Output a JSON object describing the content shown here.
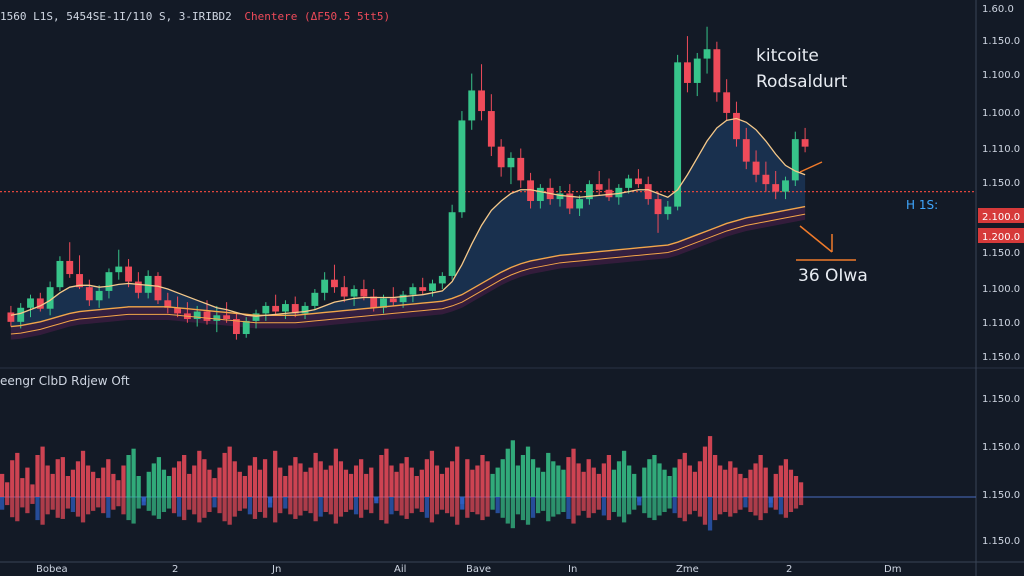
{
  "header": {
    "symbol": "1560 L1S, 5454SE-1I/110 S, 3-IRIBD2",
    "subtitle": "Chentere (ΔF50.5 5tt5)"
  },
  "annotations": {
    "top_label_line1": "kitcoite",
    "top_label_line2": "Rodsaldurt",
    "lower_label": "36 OIwa",
    "hs_label": "H 1S:"
  },
  "indicator": {
    "title": "eengr ClbD Rdjew Oft"
  },
  "colors": {
    "background": "#131a26",
    "up": "#37c48a",
    "down": "#ef4b5a",
    "ma_orange": "#f2a64a",
    "ma_light": "#f6c98a",
    "area_fill": "#1d3b5f",
    "cloud_fill": "#3a1d3f",
    "level_line": "#e0463c",
    "axis": "#8f99ab",
    "indicator_blue": "#2f62c9"
  },
  "chart_data": [
    {
      "type": "candlestick",
      "title": "",
      "y_axis_labels": [
        "1.60.0",
        "1.150.0",
        "1.100.0",
        "1.100.0",
        "1.110.0",
        "1.150.0",
        "2.100.0",
        "1.200.0",
        "1.150.0",
        "1.100.0",
        "1.110.0",
        "1.150.0"
      ],
      "level_tags": [
        "2.100.0",
        "1.200.0"
      ],
      "x_axis_labels": [
        "Bobea",
        "2",
        "Jn",
        "Ail",
        "Bave",
        "In",
        "Zme",
        "2",
        "Dm"
      ],
      "candles": [
        [
          1085,
          1092,
          1070,
          1075
        ],
        [
          1075,
          1095,
          1068,
          1090
        ],
        [
          1090,
          1104,
          1080,
          1100
        ],
        [
          1100,
          1106,
          1086,
          1089
        ],
        [
          1089,
          1118,
          1082,
          1112
        ],
        [
          1112,
          1145,
          1108,
          1140
        ],
        [
          1140,
          1160,
          1122,
          1126
        ],
        [
          1126,
          1146,
          1110,
          1112
        ],
        [
          1112,
          1120,
          1092,
          1098
        ],
        [
          1098,
          1114,
          1090,
          1108
        ],
        [
          1108,
          1132,
          1100,
          1128
        ],
        [
          1128,
          1152,
          1120,
          1134
        ],
        [
          1134,
          1142,
          1112,
          1118
        ],
        [
          1118,
          1128,
          1100,
          1106
        ],
        [
          1106,
          1130,
          1100,
          1124
        ],
        [
          1124,
          1128,
          1094,
          1098
        ],
        [
          1098,
          1106,
          1084,
          1090
        ],
        [
          1090,
          1102,
          1080,
          1084
        ],
        [
          1084,
          1096,
          1074,
          1078
        ],
        [
          1078,
          1092,
          1070,
          1086
        ],
        [
          1086,
          1098,
          1072,
          1076
        ],
        [
          1076,
          1092,
          1064,
          1082
        ],
        [
          1082,
          1096,
          1074,
          1078
        ],
        [
          1078,
          1085,
          1056,
          1062
        ],
        [
          1062,
          1080,
          1058,
          1076
        ],
        [
          1076,
          1088,
          1068,
          1084
        ],
        [
          1084,
          1096,
          1076,
          1092
        ],
        [
          1092,
          1104,
          1082,
          1086
        ],
        [
          1086,
          1098,
          1078,
          1094
        ],
        [
          1094,
          1102,
          1080,
          1084
        ],
        [
          1084,
          1096,
          1078,
          1092
        ],
        [
          1092,
          1110,
          1088,
          1106
        ],
        [
          1106,
          1128,
          1098,
          1120
        ],
        [
          1120,
          1136,
          1106,
          1112
        ],
        [
          1112,
          1124,
          1096,
          1102
        ],
        [
          1102,
          1114,
          1092,
          1110
        ],
        [
          1110,
          1120,
          1098,
          1102
        ],
        [
          1102,
          1110,
          1086,
          1090
        ],
        [
          1090,
          1104,
          1084,
          1100
        ],
        [
          1100,
          1112,
          1092,
          1096
        ],
        [
          1096,
          1108,
          1090,
          1104
        ],
        [
          1104,
          1116,
          1096,
          1112
        ],
        [
          1112,
          1122,
          1104,
          1108
        ],
        [
          1108,
          1120,
          1102,
          1116
        ],
        [
          1116,
          1128,
          1110,
          1124
        ],
        [
          1124,
          1200,
          1120,
          1192
        ],
        [
          1192,
          1300,
          1186,
          1290
        ],
        [
          1290,
          1340,
          1280,
          1322
        ],
        [
          1322,
          1350,
          1290,
          1300
        ],
        [
          1300,
          1318,
          1252,
          1262
        ],
        [
          1262,
          1270,
          1230,
          1240
        ],
        [
          1240,
          1256,
          1222,
          1250
        ],
        [
          1250,
          1260,
          1218,
          1226
        ],
        [
          1226,
          1234,
          1196,
          1204
        ],
        [
          1204,
          1222,
          1196,
          1218
        ],
        [
          1218,
          1228,
          1200,
          1206
        ],
        [
          1206,
          1220,
          1198,
          1212
        ],
        [
          1212,
          1222,
          1190,
          1196
        ],
        [
          1196,
          1210,
          1188,
          1206
        ],
        [
          1206,
          1226,
          1200,
          1222
        ],
        [
          1222,
          1236,
          1210,
          1216
        ],
        [
          1216,
          1228,
          1204,
          1208
        ],
        [
          1208,
          1222,
          1200,
          1218
        ],
        [
          1218,
          1232,
          1212,
          1228
        ],
        [
          1228,
          1238,
          1218,
          1222
        ],
        [
          1222,
          1230,
          1200,
          1206
        ],
        [
          1206,
          1214,
          1170,
          1190
        ],
        [
          1190,
          1204,
          1184,
          1198
        ],
        [
          1198,
          1360,
          1194,
          1352
        ],
        [
          1352,
          1380,
          1320,
          1330
        ],
        [
          1330,
          1362,
          1316,
          1356
        ],
        [
          1356,
          1390,
          1340,
          1366
        ],
        [
          1366,
          1374,
          1310,
          1320
        ],
        [
          1320,
          1334,
          1290,
          1298
        ],
        [
          1298,
          1310,
          1262,
          1270
        ],
        [
          1270,
          1282,
          1238,
          1246
        ],
        [
          1246,
          1258,
          1224,
          1232
        ],
        [
          1232,
          1246,
          1214,
          1222
        ],
        [
          1222,
          1236,
          1206,
          1214
        ],
        [
          1214,
          1230,
          1206,
          1226
        ],
        [
          1226,
          1278,
          1220,
          1270
        ],
        [
          1270,
          1282,
          1256,
          1262
        ]
      ],
      "ma_short": [
        1082,
        1084,
        1088,
        1092,
        1098,
        1106,
        1112,
        1114,
        1114,
        1112,
        1113,
        1115,
        1116,
        1115,
        1114,
        1113,
        1110,
        1106,
        1102,
        1098,
        1094,
        1090,
        1088,
        1085,
        1082,
        1081,
        1082,
        1083,
        1084,
        1085,
        1086,
        1088,
        1092,
        1096,
        1098,
        1100,
        1101,
        1101,
        1101,
        1101,
        1102,
        1103,
        1104,
        1106,
        1108,
        1118,
        1136,
        1158,
        1178,
        1194,
        1204,
        1212,
        1216,
        1216,
        1214,
        1212,
        1210,
        1209,
        1208,
        1209,
        1210,
        1211,
        1212,
        1214,
        1216,
        1216,
        1212,
        1208,
        1216,
        1232,
        1250,
        1268,
        1282,
        1290,
        1292,
        1288,
        1280,
        1268,
        1254,
        1242,
        1236,
        1232
      ],
      "ma_long": [
        1070,
        1071,
        1073,
        1075,
        1078,
        1081,
        1084,
        1086,
        1087,
        1088,
        1089,
        1090,
        1091,
        1091,
        1091,
        1091,
        1091,
        1090,
        1089,
        1088,
        1087,
        1086,
        1085,
        1084,
        1083,
        1082,
        1082,
        1082,
        1082,
        1082,
        1083,
        1084,
        1085,
        1086,
        1087,
        1088,
        1089,
        1090,
        1091,
        1092,
        1093,
        1094,
        1095,
        1096,
        1097,
        1100,
        1104,
        1110,
        1116,
        1122,
        1128,
        1133,
        1137,
        1140,
        1142,
        1144,
        1146,
        1147,
        1148,
        1149,
        1150,
        1151,
        1152,
        1153,
        1154,
        1155,
        1156,
        1157,
        1160,
        1164,
        1168,
        1172,
        1176,
        1180,
        1183,
        1186,
        1188,
        1190,
        1192,
        1194,
        1196,
        1198
      ],
      "ylim": [
        1030,
        1410
      ],
      "level": 1214
    },
    {
      "type": "bar",
      "title": "eengr ClbD Rdjew Oft",
      "y_axis_labels": [
        "1.150.0",
        "1.150.0",
        "1.150.0",
        "1.150.0"
      ],
      "values": [
        22,
        14,
        35,
        42,
        18,
        28,
        12,
        40,
        48,
        30,
        22,
        36,
        38,
        20,
        26,
        34,
        44,
        30,
        24,
        18,
        28,
        36,
        22,
        16,
        30,
        40,
        46,
        20,
        -8,
        24,
        32,
        38,
        26,
        20,
        28,
        34,
        40,
        22,
        30,
        44,
        36,
        26,
        18,
        28,
        42,
        48,
        34,
        24,
        20,
        30,
        38,
        26,
        36,
        -10,
        44,
        28,
        20,
        30,
        38,
        32,
        24,
        28,
        42,
        34,
        26,
        30,
        46,
        34,
        26,
        22,
        30,
        36,
        22,
        28,
        -6,
        40,
        46,
        30,
        24,
        32,
        38,
        28,
        20,
        26,
        36,
        44,
        30,
        22,
        28,
        34,
        48,
        -12,
        36,
        26,
        30,
        40,
        34,
        22,
        28,
        36,
        46,
        54,
        30,
        40,
        48,
        36,
        28,
        24,
        42,
        34,
        30,
        26,
        38,
        46,
        32,
        24,
        36,
        28,
        22,
        32,
        40,
        26,
        34,
        44,
        30,
        22,
        -8,
        28,
        36,
        40,
        32,
        26,
        20,
        28,
        36,
        42,
        30,
        24,
        34,
        48,
        58,
        40,
        30,
        26,
        34,
        28,
        22,
        18,
        26,
        32,
        40,
        28,
        -10,
        22,
        30,
        36,
        26,
        20,
        14
      ],
      "ylim": [
        -60,
        100
      ]
    }
  ]
}
